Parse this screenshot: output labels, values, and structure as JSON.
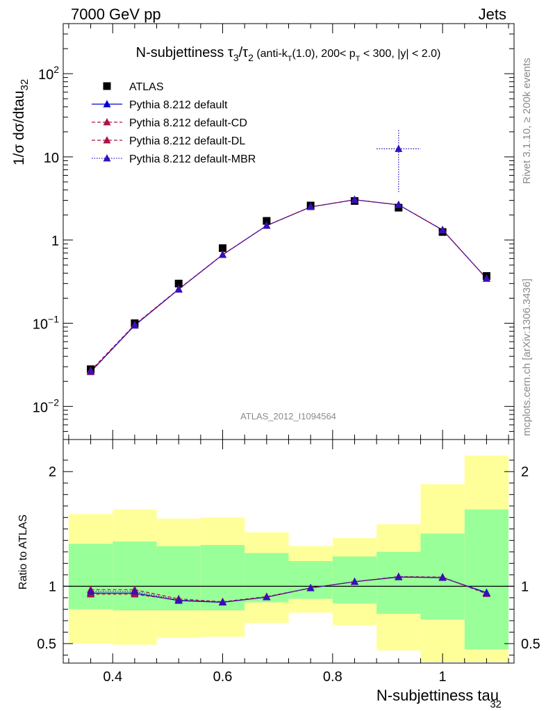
{
  "header": {
    "energy_label": "7000 GeV pp",
    "category_label": "Jets",
    "rivet_label": "Rivet 3.1.10, ≥ 200k events",
    "mcplots_label": "mcplots.cern.ch [arXiv:1306.3436]",
    "analysis_label": "ATLAS_2012_I1094564"
  },
  "chart_data": [
    {
      "type": "scatter",
      "title": "N-subjettiness τ3/τ2 (anti-kT(1.0), 200< pT < 300, |y| < 2.0)",
      "ylabel": "1/σ dσ/dtau32",
      "xlabel": "N-subjettiness tau32",
      "yscale": "log",
      "xlim": [
        0.31,
        1.13
      ],
      "ylim": [
        0.004,
        400
      ],
      "x_bin_edges": [
        0.32,
        0.4,
        0.48,
        0.56,
        0.64,
        0.72,
        0.8,
        0.88,
        0.96,
        1.04,
        1.12
      ],
      "x": [
        0.36,
        0.44,
        0.52,
        0.6,
        0.68,
        0.76,
        0.84,
        0.92,
        1.0,
        1.08
      ],
      "y_ticks": [
        "10^-2",
        "10^-1",
        "1",
        "10",
        "10^2"
      ],
      "legend": [
        "ATLAS",
        "Pythia 8.212 default",
        "Pythia 8.212 default-CD",
        "Pythia 8.212 default-DL",
        "Pythia 8.212 default-MBR"
      ],
      "series": [
        {
          "name": "ATLAS",
          "color": "#000000",
          "marker": "square",
          "values": [
            0.028,
            0.1,
            0.3,
            0.8,
            1.7,
            2.6,
            2.95,
            2.45,
            1.25,
            0.37
          ]
        },
        {
          "name": "Pythia 8.212 default",
          "color": "#0000cc",
          "marker": "triangle",
          "line": "solid",
          "values": [
            0.026,
            0.094,
            0.255,
            0.665,
            1.49,
            2.5,
            3.05,
            2.65,
            1.32,
            0.345
          ]
        },
        {
          "name": "Pythia 8.212 default-CD",
          "color": "#aa1144",
          "marker": "triangle",
          "line": "dashed",
          "values": [
            0.027,
            0.096,
            0.258,
            0.668,
            1.495,
            2.505,
            3.055,
            2.655,
            1.325,
            0.345
          ]
        },
        {
          "name": "Pythia 8.212 default-DL",
          "color": "#aa1144",
          "marker": "triangle",
          "line": "dashed",
          "values": [
            0.026,
            0.095,
            0.256,
            0.667,
            1.492,
            2.502,
            3.052,
            2.652,
            1.322,
            0.345
          ]
        },
        {
          "name": "Pythia 8.212 default-MBR",
          "color": "#3311bb",
          "marker": "triangle",
          "line": "dotted",
          "values": [
            0.0265,
            0.095,
            0.256,
            0.666,
            1.492,
            2.502,
            3.05,
            2.65,
            1.322,
            0.345
          ]
        }
      ],
      "outlier_point": {
        "series": "Pythia 8.212 default-MBR",
        "x": 0.92,
        "y": 12.5,
        "y_err": [
          3.7,
          21
        ],
        "x_err": [
          0.88,
          0.96
        ]
      }
    },
    {
      "type": "scatter",
      "ylabel": "Ratio to ATLAS",
      "xlabel": "N-subjettiness tau32",
      "xlim": [
        0.31,
        1.13
      ],
      "ylim": [
        0.33,
        2.28
      ],
      "y_ticks": [
        0.5,
        1,
        2
      ],
      "x_ticks": [
        0.4,
        0.6,
        0.8,
        1
      ],
      "x_bin_edges": [
        0.32,
        0.4,
        0.48,
        0.56,
        0.64,
        0.72,
        0.8,
        0.88,
        0.96,
        1.04,
        1.12
      ],
      "band_green": {
        "color": "#99ff99",
        "low": [
          0.8,
          0.79,
          0.79,
          0.79,
          0.86,
          0.89,
          0.85,
          0.76,
          0.71,
          0.45
        ],
        "high": [
          1.37,
          1.39,
          1.35,
          1.36,
          1.29,
          1.22,
          1.26,
          1.3,
          1.46,
          1.67
        ]
      },
      "band_yellow": {
        "color": "#ffff99",
        "low": [
          0.5,
          0.49,
          0.55,
          0.56,
          0.68,
          0.77,
          0.66,
          0.44,
          0.34,
          0.34
        ],
        "high": [
          1.63,
          1.67,
          1.59,
          1.6,
          1.47,
          1.35,
          1.42,
          1.54,
          1.89,
          2.14
        ]
      },
      "x": [
        0.36,
        0.44,
        0.52,
        0.6,
        0.68,
        0.76,
        0.84,
        0.92,
        1.0,
        1.08
      ],
      "series": [
        {
          "name": "Pythia 8.212 default",
          "color": "#0000cc",
          "line": "solid",
          "values": [
            0.94,
            0.94,
            0.875,
            0.86,
            0.905,
            0.985,
            1.04,
            1.08,
            1.075,
            0.945
          ]
        },
        {
          "name": "Pythia 8.212 default-CD",
          "color": "#aa1144",
          "line": "dashed",
          "values": [
            0.97,
            0.97,
            0.89,
            0.865,
            0.91,
            0.985,
            1.04,
            1.085,
            1.08,
            0.935
          ]
        },
        {
          "name": "Pythia 8.212 default-DL",
          "color": "#aa1144",
          "line": "dashed",
          "values": [
            0.93,
            0.93,
            0.88,
            0.862,
            0.905,
            0.985,
            1.04,
            1.082,
            1.078,
            0.935
          ]
        },
        {
          "name": "Pythia 8.212 default-MBR",
          "color": "#3311bb",
          "line": "dotted",
          "values": [
            0.955,
            0.955,
            0.88,
            0.862,
            0.906,
            0.985,
            1.04,
            1.082,
            1.077,
            0.94
          ]
        }
      ]
    }
  ]
}
